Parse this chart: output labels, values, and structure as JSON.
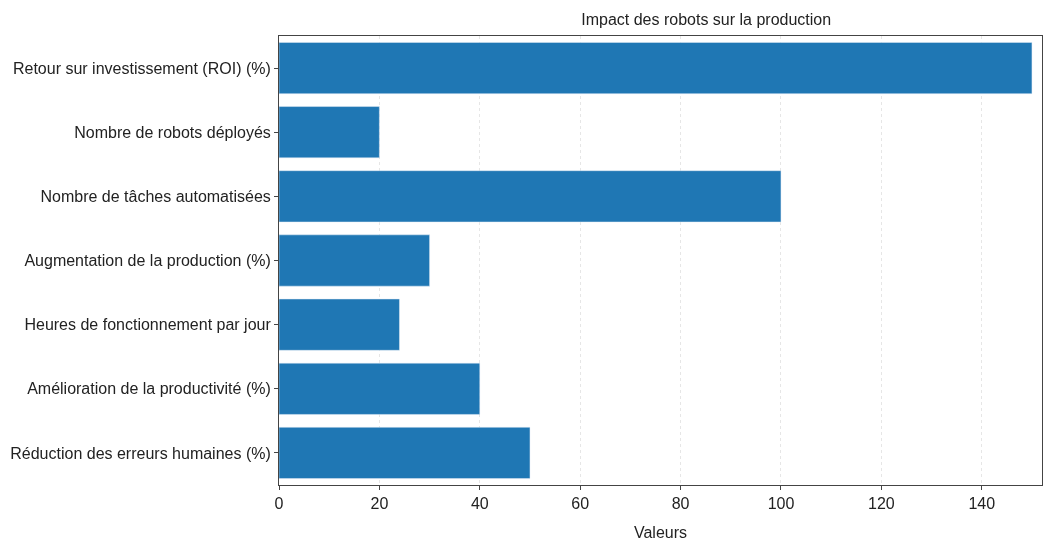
{
  "chart_data": {
    "type": "bar",
    "orientation": "horizontal",
    "title": "Impact des robots sur la production",
    "xlabel": "Valeurs",
    "categories": [
      "Retour sur investissement (ROI) (%)",
      "Nombre de robots déployés",
      "Nombre de tâches automatisées",
      "Augmentation de la production (%)",
      "Heures de fonctionnement par jour",
      "Amélioration de la productivité (%)",
      "Réduction des erreurs humaines (%)"
    ],
    "values": [
      150,
      20,
      100,
      30,
      24,
      40,
      50
    ],
    "color": "#1f77b4",
    "xlim": [
      0,
      152
    ],
    "xticks": [
      0,
      20,
      40,
      60,
      80,
      100,
      120,
      140
    ],
    "grid": "x"
  }
}
